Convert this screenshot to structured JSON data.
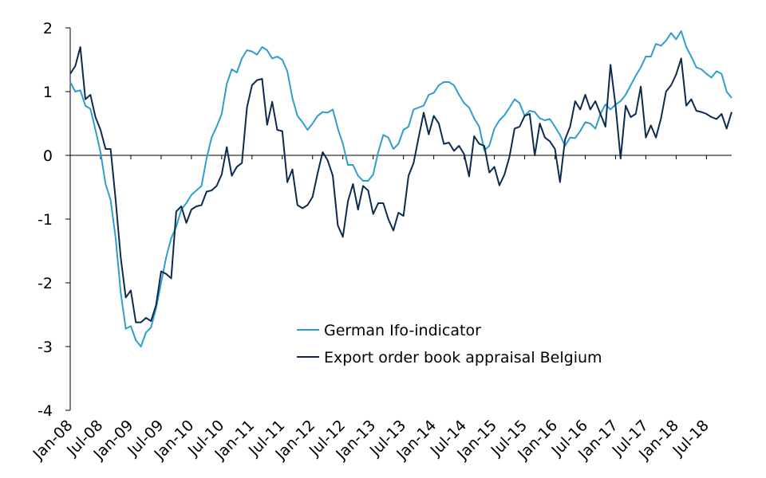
{
  "chart_data": {
    "type": "line",
    "title": "",
    "xlabel": "",
    "ylabel": "",
    "ylim": [
      -4,
      2
    ],
    "yticks": [
      "2",
      "1",
      "0",
      "-1",
      "-2",
      "-3",
      "-4"
    ],
    "xticks": [
      "Jan-08",
      "Jul-08",
      "Jan-09",
      "Jul-09",
      "Jan-10",
      "Jul-10",
      "Jan-11",
      "Jul-11",
      "Jan-12",
      "Jul-12",
      "Jan-13",
      "Jul-13",
      "Jan-14",
      "Jul-14",
      "Jan-15",
      "Jul-15",
      "Jan-16",
      "Jul-16",
      "Jan-17",
      "Jul-17",
      "Jan-18",
      "Jul-18"
    ],
    "x_start": "2008-01",
    "frequency": "monthly",
    "grid": false,
    "legend_position": "center",
    "series": [
      {
        "name": "German Ifo-indicator",
        "color": "#2e9fcd",
        "values": [
          1.15,
          1.0,
          1.02,
          0.78,
          0.73,
          0.4,
          0.05,
          -0.45,
          -0.7,
          -1.3,
          -2.15,
          -2.72,
          -2.68,
          -2.9,
          -3.0,
          -2.78,
          -2.7,
          -2.4,
          -2.0,
          -1.6,
          -1.3,
          -1.12,
          -0.85,
          -0.75,
          -0.62,
          -0.55,
          -0.48,
          -0.05,
          0.28,
          0.45,
          0.65,
          1.12,
          1.35,
          1.3,
          1.52,
          1.65,
          1.63,
          1.58,
          1.7,
          1.65,
          1.52,
          1.55,
          1.5,
          1.32,
          0.9,
          0.62,
          0.52,
          0.4,
          0.5,
          0.62,
          0.68,
          0.67,
          0.72,
          0.42,
          0.18,
          -0.15,
          -0.15,
          -0.32,
          -0.4,
          -0.4,
          -0.3,
          0.05,
          0.32,
          0.28,
          0.1,
          0.18,
          0.4,
          0.45,
          0.72,
          0.75,
          0.78,
          0.95,
          0.98,
          1.1,
          1.15,
          1.15,
          1.1,
          0.95,
          0.82,
          0.75,
          0.58,
          0.45,
          0.08,
          0.15,
          0.42,
          0.55,
          0.63,
          0.75,
          0.88,
          0.82,
          0.62,
          0.7,
          0.68,
          0.58,
          0.55,
          0.57,
          0.45,
          0.32,
          0.15,
          0.28,
          0.27,
          0.38,
          0.52,
          0.5,
          0.42,
          0.65,
          0.8,
          0.72,
          0.8,
          0.85,
          0.95,
          1.1,
          1.25,
          1.38,
          1.55,
          1.55,
          1.75,
          1.72,
          1.8,
          1.92,
          1.82,
          1.95,
          1.7,
          1.55,
          1.38,
          1.35,
          1.28,
          1.22,
          1.32,
          1.28,
          1.0,
          0.9
        ]
      },
      {
        "name": "Export order book appraisal Belgium",
        "color": "#0d2a4f",
        "values": [
          1.28,
          1.4,
          1.7,
          0.88,
          0.95,
          0.6,
          0.4,
          0.1,
          0.1,
          -0.7,
          -1.6,
          -2.23,
          -2.12,
          -2.62,
          -2.62,
          -2.55,
          -2.6,
          -2.35,
          -1.82,
          -1.86,
          -1.93,
          -0.88,
          -0.8,
          -1.06,
          -0.85,
          -0.8,
          -0.78,
          -0.57,
          -0.55,
          -0.48,
          -0.3,
          0.13,
          -0.32,
          -0.18,
          -0.12,
          0.75,
          1.1,
          1.18,
          1.2,
          0.48,
          0.84,
          0.4,
          0.38,
          -0.42,
          -0.22,
          -0.78,
          -0.83,
          -0.78,
          -0.65,
          -0.28,
          0.05,
          -0.08,
          -0.32,
          -1.1,
          -1.28,
          -0.72,
          -0.45,
          -0.85,
          -0.48,
          -0.55,
          -0.92,
          -0.75,
          -0.75,
          -1.0,
          -1.18,
          -0.9,
          -0.95,
          -0.32,
          -0.12,
          0.28,
          0.67,
          0.33,
          0.62,
          0.5,
          0.18,
          0.2,
          0.07,
          0.15,
          0.02,
          -0.33,
          0.3,
          0.18,
          0.15,
          -0.27,
          -0.18,
          -0.47,
          -0.3,
          -0.02,
          0.42,
          0.45,
          0.62,
          0.65,
          0.0,
          0.5,
          0.28,
          0.22,
          0.1,
          -0.42,
          0.25,
          0.45,
          0.85,
          0.72,
          0.95,
          0.72,
          0.85,
          0.65,
          0.45,
          1.42,
          0.78,
          -0.05,
          0.78,
          0.6,
          0.65,
          1.08,
          0.28,
          0.47,
          0.28,
          0.58,
          1.0,
          1.1,
          1.27,
          1.52,
          0.78,
          0.88,
          0.7,
          0.68,
          0.65,
          0.6,
          0.57,
          0.65,
          0.42,
          0.68
        ]
      }
    ]
  }
}
